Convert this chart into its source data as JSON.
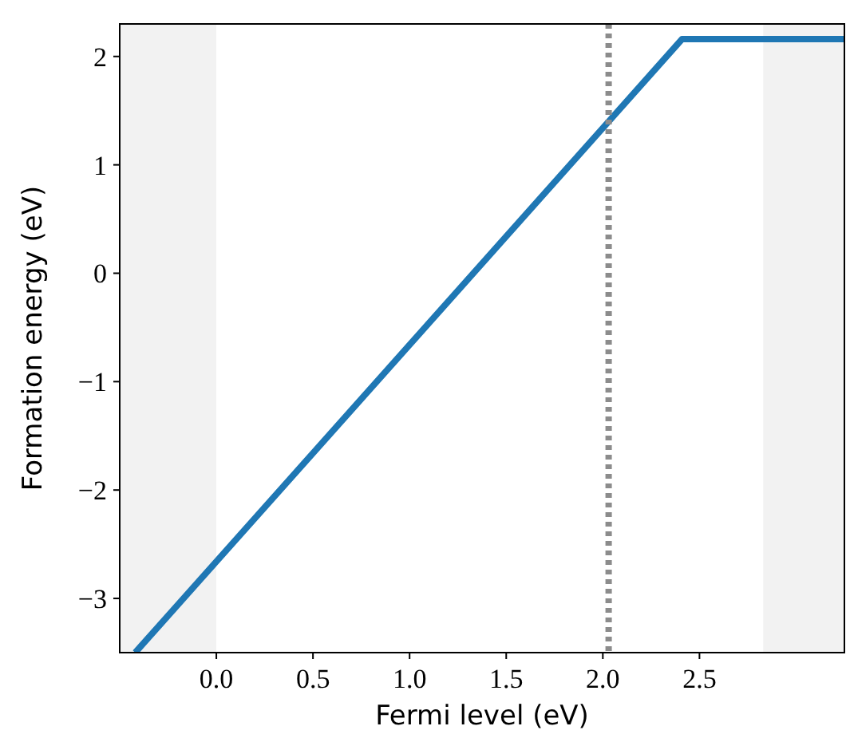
{
  "chart_data": {
    "type": "line",
    "xlabel": "Fermi level (eV)",
    "ylabel": "Formation energy (eV)",
    "xlim": [
      -0.5,
      3.25
    ],
    "ylim": [
      -3.5,
      2.3
    ],
    "xticks": [
      {
        "value": 0,
        "label": "0.0"
      },
      {
        "value": 0.5,
        "label": "0.5"
      },
      {
        "value": 1,
        "label": "1.0"
      },
      {
        "value": 1.5,
        "label": "1.5"
      },
      {
        "value": 2,
        "label": "2.0"
      },
      {
        "value": 2.5,
        "label": "2.5"
      }
    ],
    "yticks": [
      {
        "value": -3,
        "label": "−3"
      },
      {
        "value": -2,
        "label": "−2"
      },
      {
        "value": -1,
        "label": "−1"
      },
      {
        "value": 0,
        "label": "0"
      },
      {
        "value": 1,
        "label": "1"
      },
      {
        "value": 2,
        "label": "2"
      }
    ],
    "series": [
      {
        "color": "#1f77b4",
        "x": [
          -0.42,
          2.41,
          3.25
        ],
        "values": [
          -3.5,
          2.16,
          2.16
        ]
      }
    ],
    "bands": [
      {
        "axis": "x",
        "from": -0.5,
        "to": 0,
        "color": "#f2f2f2"
      },
      {
        "axis": "x",
        "from": 2.83,
        "to": 3.25,
        "color": "#f2f2f2"
      }
    ],
    "ref_lines": [
      {
        "axis": "x",
        "value": 2.03,
        "color": "#8c8c8c",
        "line_style": "dotted"
      }
    ],
    "grid": false,
    "line_style": "solid",
    "marker": "none"
  }
}
